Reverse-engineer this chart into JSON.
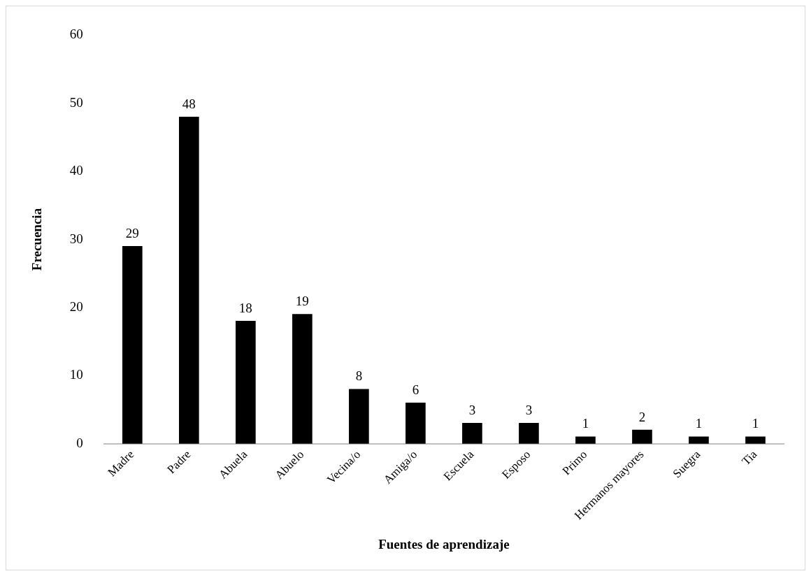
{
  "chart_data": {
    "type": "bar",
    "xlabel": "Fuentes de aprendizaje",
    "ylabel": "Frecuencia",
    "categories": [
      "Madre",
      "Padre",
      "Abuela",
      "Abuelo",
      "Vecina/o",
      "Amiga/o",
      "Escuela",
      "Esposo",
      "Primo",
      "Hermanos mayores",
      "Suegra",
      "Tia"
    ],
    "values": [
      29,
      48,
      18,
      19,
      8,
      6,
      3,
      3,
      1,
      2,
      1,
      1
    ],
    "color": "#000000",
    "ylim": [
      0,
      60
    ],
    "yticks": [
      0,
      10,
      20,
      30,
      40,
      50,
      60
    ],
    "grid": false,
    "legend": false,
    "data_labels": true
  }
}
